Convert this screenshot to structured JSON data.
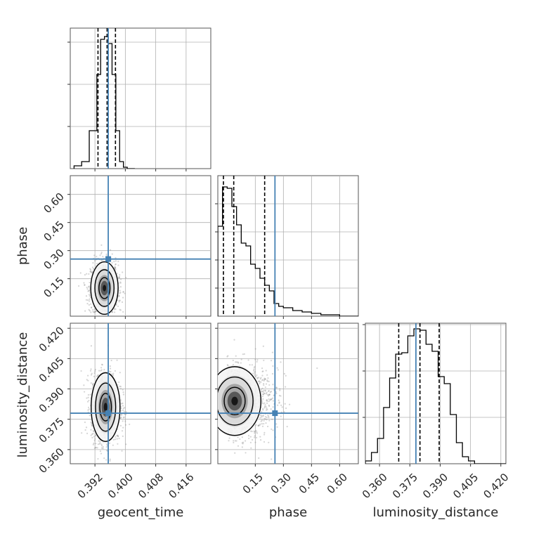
{
  "chart_data": {
    "type": "corner",
    "parameters": [
      "geocent_time",
      "phase",
      "luminosity_distance"
    ],
    "injection": {
      "geocent_time": 0.3955,
      "phase": 0.255,
      "luminosity_distance": 0.378
    },
    "colors": {
      "truth": "#4682b4",
      "hist": "#000000",
      "grid": "#b0b0b0",
      "points": "#888888"
    },
    "grid": true,
    "panels": {
      "geocent_time_hist": {
        "xlim": [
          0.3855,
          0.4225
        ],
        "ylim": [
          0,
          1.0
        ],
        "x_ticks": [
          0.392,
          0.4,
          0.408,
          0.416
        ],
        "bin_edges": [
          0.3865,
          0.3885,
          0.3905,
          0.3925,
          0.3935,
          0.3945,
          0.3955,
          0.3965,
          0.3975,
          0.3985,
          0.3995,
          0.4005,
          0.4025
        ],
        "counts": [
          0.02,
          0.05,
          0.27,
          0.67,
          0.92,
          0.94,
          0.89,
          0.67,
          0.27,
          0.05,
          0.01,
          0.0
        ],
        "quantiles": [
          0.3928,
          0.3952,
          0.3974
        ]
      },
      "phase_hist": {
        "xlim": [
          -0.05,
          0.7
        ],
        "ylim": [
          0,
          1.0
        ],
        "x_ticks": [
          0.15,
          0.3,
          0.45,
          0.6
        ],
        "bin_edges": [
          -0.05,
          -0.025,
          0.0,
          0.025,
          0.05,
          0.075,
          0.1,
          0.125,
          0.15,
          0.175,
          0.2,
          0.225,
          0.25,
          0.275,
          0.3,
          0.35,
          0.4,
          0.45,
          0.5,
          0.55,
          0.6,
          0.65,
          0.7
        ],
        "counts": [
          0.64,
          0.92,
          0.91,
          0.78,
          0.65,
          0.52,
          0.5,
          0.37,
          0.34,
          0.27,
          0.22,
          0.18,
          0.09,
          0.07,
          0.06,
          0.04,
          0.03,
          0.02,
          0.01,
          0.01,
          0.0,
          0.0
        ],
        "quantiles": [
          -0.02,
          0.035,
          0.2
        ]
      },
      "luminosity_distance_hist": {
        "xlim": [
          0.353,
          0.4225
        ],
        "ylim": [
          0,
          1.0
        ],
        "x_ticks": [
          0.36,
          0.375,
          0.39,
          0.405,
          0.42
        ],
        "bin_edges": [
          0.353,
          0.356,
          0.359,
          0.362,
          0.365,
          0.368,
          0.371,
          0.374,
          0.377,
          0.38,
          0.383,
          0.386,
          0.389,
          0.392,
          0.395,
          0.398,
          0.401,
          0.404,
          0.407,
          0.4225
        ],
        "counts": [
          0.02,
          0.08,
          0.18,
          0.4,
          0.61,
          0.78,
          0.79,
          0.91,
          0.96,
          0.95,
          0.85,
          0.8,
          0.62,
          0.57,
          0.35,
          0.15,
          0.05,
          0.02,
          0.0
        ],
        "quantiles": [
          0.3695,
          0.38,
          0.3895
        ]
      },
      "phase_vs_geocent_time": {
        "xlim": [
          0.3855,
          0.4225
        ],
        "ylim": [
          -0.05,
          0.7
        ],
        "y_ticks": [
          0.15,
          0.3,
          0.45,
          0.6
        ],
        "center": [
          0.3945,
          0.1
        ],
        "spread": [
          0.0018,
          0.07
        ]
      },
      "luminosity_distance_vs_geocent_time": {
        "xlim": [
          0.3855,
          0.4225
        ],
        "ylim": [
          0.353,
          0.4225
        ],
        "y_ticks": [
          0.36,
          0.375,
          0.39,
          0.405,
          0.42
        ],
        "center": [
          0.3948,
          0.381
        ],
        "spread": [
          0.0019,
          0.0085
        ]
      },
      "luminosity_distance_vs_phase": {
        "xlim": [
          -0.05,
          0.7
        ],
        "ylim": [
          0.353,
          0.4225
        ],
        "center": [
          0.04,
          0.384
        ],
        "spread": [
          0.07,
          0.0085
        ]
      }
    },
    "xlabels": [
      "geocent_time",
      "phase",
      "luminosity_distance"
    ],
    "ylabels": [
      "phase",
      "luminosity_distance"
    ]
  }
}
